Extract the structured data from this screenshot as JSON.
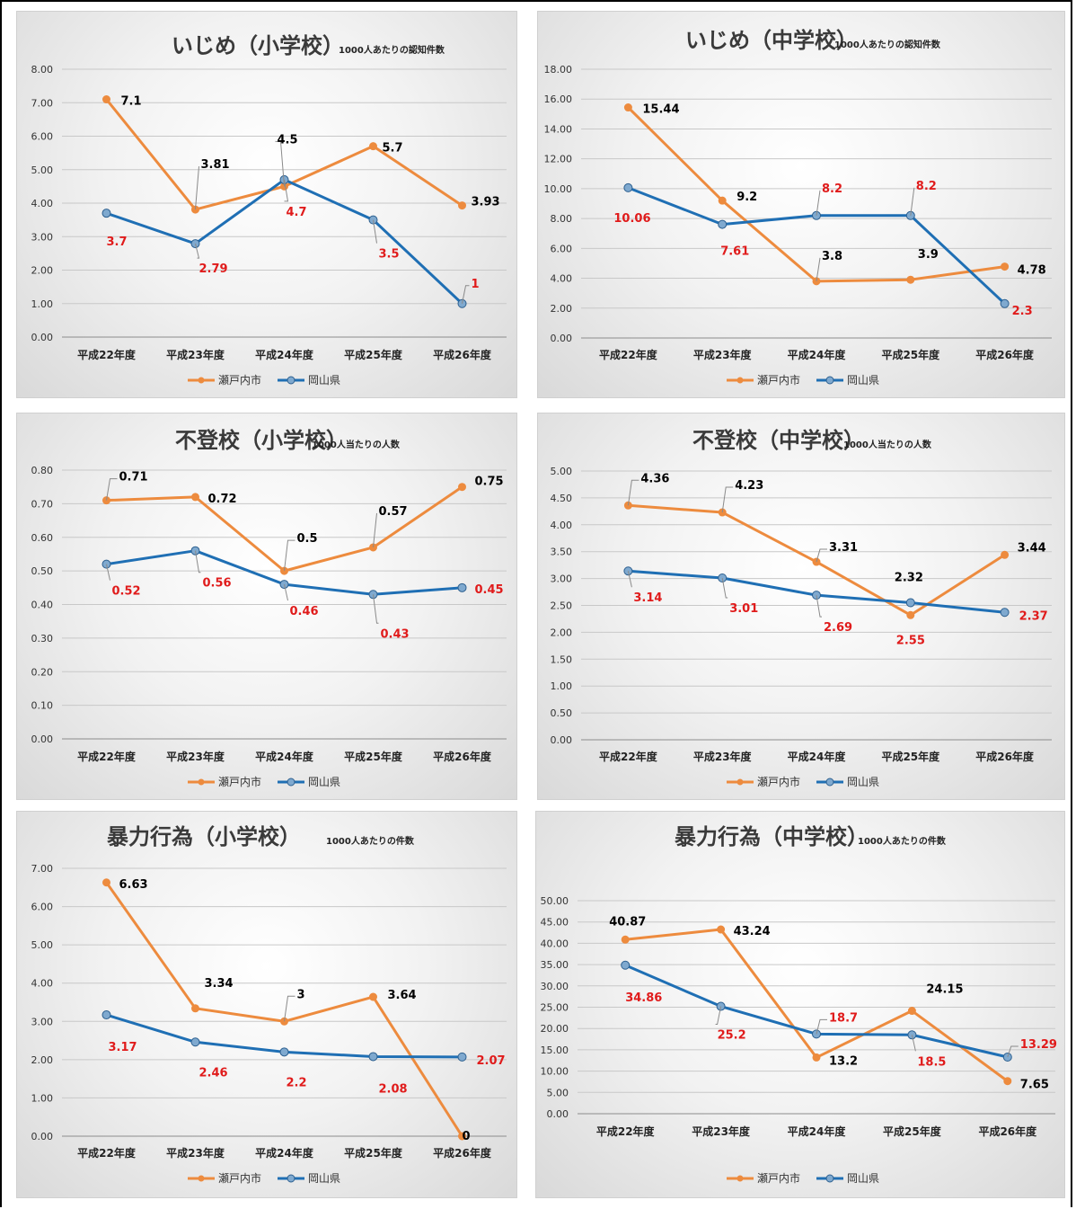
{
  "colors": {
    "seto": "#ed8b3e",
    "okayama": "#1f6fb4",
    "label_seto": "#000000",
    "label_okayama": "#e01b1b"
  },
  "legend": {
    "seto": "瀬戸内市",
    "okayama": "岡山県"
  },
  "chart_data": [
    {
      "type": "line",
      "title": "いじめ（小学校）",
      "subtitle": "1000人あたりの認知件数",
      "categories": [
        "平成22年度",
        "平成23年度",
        "平成24年度",
        "平成25年度",
        "平成26年度"
      ],
      "ylim": [
        0,
        8
      ],
      "ystep": 1,
      "decimals": 2,
      "series": [
        {
          "name": "瀬戸内市",
          "values": [
            7.1,
            3.81,
            4.5,
            5.7,
            3.93
          ],
          "labels": [
            "7.1",
            "3.81",
            "4.5",
            "5.7",
            "3.93"
          ]
        },
        {
          "name": "岡山県",
          "values": [
            3.7,
            2.79,
            4.7,
            3.5,
            1
          ],
          "labels": [
            "3.7",
            "2.79",
            "4.7",
            "3.5",
            "1"
          ]
        }
      ],
      "legend": "bottom",
      "grid": true
    },
    {
      "type": "line",
      "title": "いじめ（中学校）",
      "subtitle": "1000人あたりの認知件数",
      "categories": [
        "平成22年度",
        "平成23年度",
        "平成24年度",
        "平成25年度",
        "平成26年度"
      ],
      "ylim": [
        0,
        18
      ],
      "ystep": 2,
      "decimals": 2,
      "series": [
        {
          "name": "瀬戸内市",
          "values": [
            15.44,
            9.2,
            3.8,
            3.9,
            4.78
          ],
          "labels": [
            "15.44",
            "9.2",
            "3.8",
            "3.9",
            "4.78"
          ]
        },
        {
          "name": "岡山県",
          "values": [
            10.06,
            7.61,
            8.2,
            8.2,
            2.3
          ],
          "labels": [
            "10.06",
            "7.61",
            "8.2",
            "8.2",
            "2.3"
          ]
        }
      ],
      "legend": "bottom",
      "grid": true
    },
    {
      "type": "line",
      "title": "不登校（小学校）",
      "subtitle": "1000人当たりの人数",
      "categories": [
        "平成22年度",
        "平成23年度",
        "平成24年度",
        "平成25年度",
        "平成26年度"
      ],
      "ylim": [
        0,
        0.8
      ],
      "ystep": 0.1,
      "decimals": 2,
      "series": [
        {
          "name": "瀬戸内市",
          "values": [
            0.71,
            0.72,
            0.5,
            0.57,
            0.75
          ],
          "labels": [
            "0.71",
            "0.72",
            "0.5",
            "0.57",
            "0.75"
          ]
        },
        {
          "name": "岡山県",
          "values": [
            0.52,
            0.56,
            0.46,
            0.43,
            0.45
          ],
          "labels": [
            "0.52",
            "0.56",
            "0.46",
            "0.43",
            "0.45"
          ]
        }
      ],
      "legend": "bottom",
      "grid": true
    },
    {
      "type": "line",
      "title": "不登校（中学校）",
      "subtitle": "1000人当たりの人数",
      "categories": [
        "平成22年度",
        "平成23年度",
        "平成24年度",
        "平成25年度",
        "平成26年度"
      ],
      "ylim": [
        0,
        5
      ],
      "ystep": 0.5,
      "decimals": 2,
      "series": [
        {
          "name": "瀬戸内市",
          "values": [
            4.36,
            4.23,
            3.31,
            2.32,
            3.44
          ],
          "labels": [
            "4.36",
            "4.23",
            "3.31",
            "2.32",
            "3.44"
          ]
        },
        {
          "name": "岡山県",
          "values": [
            3.14,
            3.01,
            2.69,
            2.55,
            2.37
          ],
          "labels": [
            "3.14",
            "3.01",
            "2.69",
            "2.55",
            "2.37"
          ]
        }
      ],
      "legend": "bottom",
      "grid": true
    },
    {
      "type": "line",
      "title": "暴力行為（小学校）",
      "subtitle": "1000人あたりの件数",
      "categories": [
        "平成22年度",
        "平成23年度",
        "平成24年度",
        "平成25年度",
        "平成26年度"
      ],
      "ylim": [
        0,
        7
      ],
      "ystep": 1,
      "decimals": 2,
      "series": [
        {
          "name": "瀬戸内市",
          "values": [
            6.63,
            3.34,
            3,
            3.64,
            0
          ],
          "labels": [
            "6.63",
            "3.34",
            "3",
            "3.64",
            "0"
          ]
        },
        {
          "name": "岡山県",
          "values": [
            3.17,
            2.46,
            2.2,
            2.08,
            2.07
          ],
          "labels": [
            "3.17",
            "2.46",
            "2.2",
            "2.08",
            "2.07"
          ]
        }
      ],
      "legend": "bottom",
      "grid": true
    },
    {
      "type": "line",
      "title": "暴力行為（中学校）",
      "subtitle": "1000人あたりの件数",
      "categories": [
        "平成22年度",
        "平成23年度",
        "平成24年度",
        "平成25年度",
        "平成26年度"
      ],
      "ylim": [
        0,
        50
      ],
      "ystep": 5,
      "decimals": 2,
      "series": [
        {
          "name": "瀬戸内市",
          "values": [
            40.87,
            43.24,
            13.2,
            24.15,
            7.65
          ],
          "labels": [
            "40.87",
            "43.24",
            "13.2",
            "24.15",
            "7.65"
          ]
        },
        {
          "name": "岡山県",
          "values": [
            34.86,
            25.2,
            18.7,
            18.5,
            13.29
          ],
          "labels": [
            "34.86",
            "25.2",
            "18.7",
            "18.5",
            "13.29"
          ]
        }
      ],
      "legend": "bottom",
      "grid": true
    }
  ]
}
